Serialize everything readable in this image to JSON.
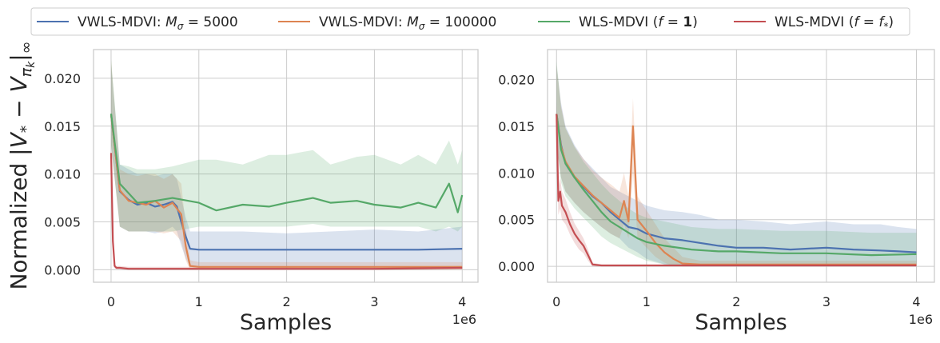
{
  "legend": {
    "items": [
      {
        "label": "VWLS-MDVI: M_σ = 5000",
        "color": "#4c72b0"
      },
      {
        "label": "VWLS-MDVI: M_σ = 100000",
        "color": "#dd8452"
      },
      {
        "label": "WLS-MDVI (f = 1)",
        "color": "#55a868"
      },
      {
        "label": "WLS-MDVI (f = f_*)",
        "color": "#c44e52"
      }
    ],
    "placement": "top (above both panels)"
  },
  "chart_data": [
    {
      "type": "line",
      "xlabel": "Samples",
      "ylabel": "Normalized |V_* − V_{π_k}|_∞",
      "x_offset_text": "1e6",
      "xlim": [
        -0.2,
        4.18
      ],
      "ylim": [
        -0.0013,
        0.023
      ],
      "xticks": [
        0,
        1,
        2,
        3,
        4
      ],
      "yticks": [
        0.0,
        0.005,
        0.01,
        0.015,
        0.02
      ],
      "ytick_labels": [
        "0.000",
        "0.005",
        "0.010",
        "0.015",
        "0.020"
      ],
      "grid": true,
      "series": [
        {
          "name": "VWLS-MDVI: M_σ = 5000",
          "color": "#4c72b0",
          "x": [
            0,
            0.1,
            0.2,
            0.3,
            0.4,
            0.5,
            0.6,
            0.7,
            0.75,
            0.8,
            0.85,
            0.9,
            1.0,
            1.5,
            2.0,
            2.5,
            3.0,
            3.5,
            4.0
          ],
          "mean": [
            0.0162,
            0.0082,
            0.0073,
            0.0068,
            0.007,
            0.0066,
            0.0068,
            0.0071,
            0.0066,
            0.005,
            0.0035,
            0.0022,
            0.0021,
            0.0021,
            0.0021,
            0.0021,
            0.0021,
            0.0021,
            0.0022
          ],
          "lower": [
            0.013,
            0.0045,
            0.004,
            0.004,
            0.004,
            0.0038,
            0.004,
            0.0045,
            0.004,
            0.0025,
            0.0012,
            0.0003,
            0.0002,
            0.0003,
            0.0002,
            0.0003,
            0.0003,
            0.0003,
            0.0003
          ],
          "upper": [
            0.0215,
            0.011,
            0.0105,
            0.01,
            0.01,
            0.0098,
            0.01,
            0.01,
            0.0095,
            0.0075,
            0.0055,
            0.004,
            0.004,
            0.004,
            0.0038,
            0.004,
            0.0042,
            0.004,
            0.0045
          ]
        },
        {
          "name": "VWLS-MDVI: M_σ = 100000",
          "color": "#dd8452",
          "x": [
            0,
            0.1,
            0.2,
            0.3,
            0.4,
            0.5,
            0.6,
            0.7,
            0.8,
            0.85,
            0.9,
            1.0,
            1.5,
            2.0,
            2.5,
            3.0,
            3.5,
            4.0
          ],
          "mean": [
            0.0162,
            0.0083,
            0.0072,
            0.007,
            0.0068,
            0.0072,
            0.0065,
            0.007,
            0.0058,
            0.0025,
            0.0004,
            0.0003,
            0.0003,
            0.0003,
            0.0003,
            0.0003,
            0.0003,
            0.0003
          ],
          "lower": [
            0.013,
            0.0045,
            0.004,
            0.004,
            0.004,
            0.004,
            0.0038,
            0.004,
            0.003,
            0.001,
            0.0,
            0.0,
            0.0,
            0.0,
            0.0,
            0.0,
            0.0,
            0.0
          ],
          "upper": [
            0.0218,
            0.0105,
            0.01,
            0.0098,
            0.01,
            0.01,
            0.0095,
            0.01,
            0.009,
            0.0045,
            0.001,
            0.0008,
            0.0008,
            0.0008,
            0.0008,
            0.0008,
            0.0008,
            0.0008
          ]
        },
        {
          "name": "WLS-MDVI (f = 1)",
          "color": "#55a868",
          "x": [
            0,
            0.1,
            0.2,
            0.3,
            0.5,
            0.7,
            1.0,
            1.2,
            1.5,
            1.8,
            2.0,
            2.3,
            2.5,
            2.8,
            3.0,
            3.3,
            3.5,
            3.7,
            3.85,
            3.95,
            4.0
          ],
          "mean": [
            0.0163,
            0.009,
            0.008,
            0.007,
            0.0072,
            0.0075,
            0.007,
            0.0062,
            0.0068,
            0.0066,
            0.007,
            0.0075,
            0.007,
            0.0072,
            0.0068,
            0.0065,
            0.007,
            0.0065,
            0.009,
            0.006,
            0.0078
          ],
          "lower": [
            0.013,
            0.0045,
            0.004,
            0.004,
            0.004,
            0.004,
            0.0045,
            0.0045,
            0.0045,
            0.0045,
            0.0045,
            0.0048,
            0.0045,
            0.0045,
            0.0045,
            0.0045,
            0.0045,
            0.004,
            0.0045,
            0.004,
            0.0045
          ],
          "upper": [
            0.022,
            0.011,
            0.0108,
            0.0105,
            0.0105,
            0.0108,
            0.0115,
            0.0115,
            0.011,
            0.012,
            0.012,
            0.0125,
            0.011,
            0.0118,
            0.012,
            0.011,
            0.012,
            0.011,
            0.0135,
            0.011,
            0.0125
          ]
        },
        {
          "name": "WLS-MDVI (f = f_*)",
          "color": "#c44e52",
          "x": [
            0,
            0.02,
            0.04,
            0.06,
            0.1,
            0.2,
            0.5,
            1.0,
            2.0,
            3.0,
            4.0
          ],
          "mean": [
            0.0122,
            0.003,
            0.0004,
            0.0002,
            0.0002,
            0.0001,
            0.0001,
            0.0001,
            0.0001,
            0.0001,
            0.0002
          ],
          "lower": [
            0.012,
            0.0025,
            0.0002,
            0.0001,
            0.0001,
            0.0,
            0.0,
            0.0,
            0.0,
            0.0,
            0.0001
          ],
          "upper": [
            0.0124,
            0.0035,
            0.0006,
            0.0004,
            0.0004,
            0.0003,
            0.0003,
            0.0003,
            0.0003,
            0.0003,
            0.0004
          ]
        }
      ]
    },
    {
      "type": "line",
      "xlabel": "Samples",
      "ylabel": "",
      "x_offset_text": "1e6",
      "xlim": [
        -0.1,
        4.2
      ],
      "ylim": [
        -0.0017,
        0.0232
      ],
      "xticks": [
        0,
        1,
        2,
        3,
        4
      ],
      "yticks": [
        0.0,
        0.005,
        0.01,
        0.015,
        0.02
      ],
      "ytick_labels": [
        "0.000",
        "0.005",
        "0.010",
        "0.015",
        "0.020"
      ],
      "grid": true,
      "series": [
        {
          "name": "VWLS-MDVI: M_σ = 5000",
          "color": "#4c72b0",
          "x": [
            0,
            0.05,
            0.1,
            0.2,
            0.3,
            0.4,
            0.5,
            0.6,
            0.7,
            0.8,
            0.9,
            1.0,
            1.2,
            1.4,
            1.6,
            1.8,
            2.0,
            2.3,
            2.6,
            3.0,
            3.3,
            3.6,
            3.8,
            4.0
          ],
          "mean": [
            0.0163,
            0.013,
            0.011,
            0.0095,
            0.0085,
            0.0075,
            0.0068,
            0.0058,
            0.005,
            0.0042,
            0.004,
            0.0035,
            0.003,
            0.0028,
            0.0025,
            0.0022,
            0.002,
            0.002,
            0.0018,
            0.002,
            0.0018,
            0.0017,
            0.0016,
            0.0015
          ],
          "lower": [
            0.013,
            0.0095,
            0.008,
            0.0068,
            0.0058,
            0.005,
            0.0042,
            0.0035,
            0.003,
            0.002,
            0.0015,
            0.0008,
            0.0002,
            0.0,
            0.0,
            0.0,
            0.0,
            0.0,
            0.0,
            0.0,
            0.0,
            0.0,
            0.0,
            0.0
          ],
          "upper": [
            0.0215,
            0.0175,
            0.015,
            0.013,
            0.0115,
            0.0105,
            0.0095,
            0.0085,
            0.008,
            0.0075,
            0.007,
            0.0065,
            0.006,
            0.0058,
            0.0055,
            0.005,
            0.005,
            0.0048,
            0.0045,
            0.0048,
            0.0045,
            0.0045,
            0.0042,
            0.004
          ]
        },
        {
          "name": "VWLS-MDVI: M_σ = 100000",
          "color": "#dd8452",
          "x": [
            0,
            0.05,
            0.1,
            0.2,
            0.3,
            0.4,
            0.5,
            0.6,
            0.7,
            0.75,
            0.8,
            0.85,
            0.9,
            1.0,
            1.1,
            1.2,
            1.3,
            1.4,
            1.6,
            2.0,
            2.5,
            3.0,
            3.5,
            4.0
          ],
          "mean": [
            0.0163,
            0.0128,
            0.0112,
            0.0096,
            0.0086,
            0.0076,
            0.0068,
            0.006,
            0.0052,
            0.007,
            0.0048,
            0.015,
            0.005,
            0.0038,
            0.0025,
            0.0015,
            0.0008,
            0.0003,
            0.0002,
            0.0002,
            0.0002,
            0.0002,
            0.0002,
            0.0002
          ],
          "lower": [
            0.013,
            0.0095,
            0.008,
            0.0068,
            0.0058,
            0.005,
            0.0042,
            0.0035,
            0.003,
            0.0045,
            0.003,
            0.01,
            0.003,
            0.002,
            0.001,
            0.0004,
            0.0,
            0.0,
            0.0,
            0.0,
            0.0,
            0.0,
            0.0,
            0.0
          ],
          "upper": [
            0.0215,
            0.0172,
            0.0148,
            0.0128,
            0.0115,
            0.0103,
            0.0095,
            0.0088,
            0.008,
            0.01,
            0.0075,
            0.018,
            0.0075,
            0.006,
            0.0045,
            0.003,
            0.002,
            0.001,
            0.0006,
            0.0006,
            0.0006,
            0.0006,
            0.0006,
            0.0006
          ]
        },
        {
          "name": "WLS-MDVI (f = 1)",
          "color": "#55a868",
          "x": [
            0,
            0.05,
            0.1,
            0.2,
            0.3,
            0.4,
            0.5,
            0.6,
            0.7,
            0.8,
            0.9,
            1.0,
            1.2,
            1.5,
            1.8,
            2.0,
            2.5,
            3.0,
            3.5,
            4.0
          ],
          "mean": [
            0.0163,
            0.0125,
            0.011,
            0.0095,
            0.0082,
            0.007,
            0.0058,
            0.0048,
            0.0042,
            0.0036,
            0.003,
            0.0026,
            0.0022,
            0.0018,
            0.0016,
            0.0016,
            0.0014,
            0.0014,
            0.0012,
            0.0013
          ],
          "lower": [
            0.013,
            0.009,
            0.0075,
            0.0062,
            0.0052,
            0.0042,
            0.0032,
            0.0025,
            0.002,
            0.0015,
            0.001,
            0.0006,
            0.0002,
            0.0,
            0.0,
            0.0,
            0.0,
            0.0,
            0.0,
            0.0
          ],
          "upper": [
            0.022,
            0.017,
            0.0148,
            0.0128,
            0.0112,
            0.01,
            0.0088,
            0.0078,
            0.007,
            0.0062,
            0.0056,
            0.0052,
            0.0048,
            0.0042,
            0.004,
            0.004,
            0.0038,
            0.0038,
            0.0036,
            0.0036
          ]
        },
        {
          "name": "WLS-MDVI (f = f_*)",
          "color": "#c44e52",
          "x": [
            0,
            0.02,
            0.04,
            0.06,
            0.1,
            0.15,
            0.2,
            0.25,
            0.3,
            0.35,
            0.4,
            0.5,
            1.0,
            2.0,
            3.0,
            4.0
          ],
          "mean": [
            0.0163,
            0.007,
            0.008,
            0.0065,
            0.0058,
            0.0045,
            0.0035,
            0.0028,
            0.0022,
            0.0012,
            0.0002,
            0.0001,
            0.0001,
            0.0001,
            0.0001,
            0.0001
          ],
          "lower": [
            0.015,
            0.0055,
            0.0062,
            0.005,
            0.0045,
            0.0034,
            0.0025,
            0.0018,
            0.0014,
            0.0006,
            0.0,
            0.0,
            0.0,
            0.0,
            0.0,
            0.0
          ],
          "upper": [
            0.0175,
            0.0085,
            0.0095,
            0.008,
            0.0072,
            0.0058,
            0.0046,
            0.0038,
            0.003,
            0.0018,
            0.0004,
            0.0002,
            0.0002,
            0.0002,
            0.0002,
            0.0002
          ]
        }
      ]
    }
  ]
}
